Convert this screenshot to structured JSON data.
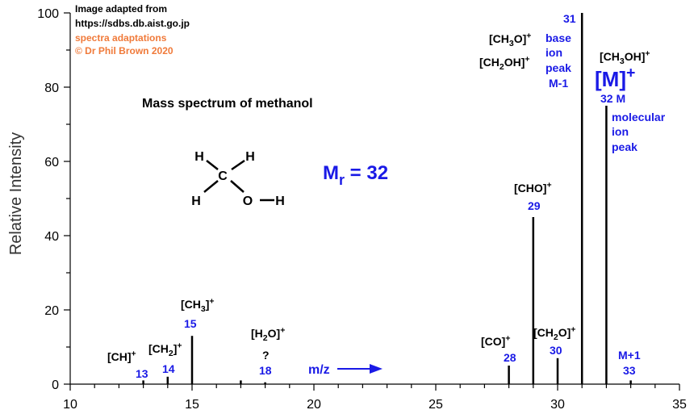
{
  "chart_data": {
    "type": "bar",
    "y_label": "Relative Intensity",
    "x": [
      13,
      14,
      15,
      17,
      18,
      28,
      29,
      30,
      31,
      32,
      33
    ],
    "values": [
      1,
      2,
      13,
      1,
      0.5,
      5,
      45,
      7,
      100,
      75,
      1
    ],
    "color": "#000000",
    "xlim": [
      10,
      35
    ],
    "xticks": [
      10,
      15,
      20,
      25,
      30,
      35
    ],
    "xminorticks": [
      11,
      12,
      13,
      14,
      16,
      17,
      18,
      19,
      21,
      22,
      23,
      24,
      26,
      27,
      28,
      29,
      31,
      32,
      33,
      34
    ],
    "ylim": [
      0,
      100
    ],
    "yticks": [
      0,
      20,
      40,
      60,
      80,
      100
    ],
    "yminorticks": [
      10,
      30,
      50,
      70,
      90
    ],
    "structure_labels": [
      "H",
      "H",
      "C",
      "H",
      "O",
      "H"
    ],
    "annotations": [
      {
        "color": "#000000",
        "runs": [
          {
            "text": "Image adapted from"
          }
        ]
      },
      {
        "color": "#000000",
        "runs": [
          {
            "text": "https://sdbs.db.aist.go.jp"
          }
        ]
      },
      {
        "color": "#f07a3a",
        "runs": [
          {
            "text": "spectra adaptations"
          }
        ]
      },
      {
        "color": "#f07a3a",
        "runs": [
          {
            "text": "© Dr Phil Brown 2020"
          }
        ]
      },
      {
        "color": "#000000",
        "runs": [
          {
            "text": "Mass spectrum of methanol"
          }
        ]
      },
      {
        "color": "#1a1ae6",
        "runs": [
          {
            "text": "M"
          },
          {
            "text": "r",
            "shift": "sub"
          },
          {
            "text": " = 32"
          }
        ]
      },
      {
        "color": "#000000",
        "runs": [
          {
            "text": "[CH]"
          },
          {
            "text": "+",
            "shift": "sup"
          }
        ]
      },
      {
        "color": "#1a1ae6",
        "runs": [
          {
            "text": "13"
          }
        ]
      },
      {
        "color": "#000000",
        "runs": [
          {
            "text": "[CH"
          },
          {
            "text": "2",
            "shift": "sub"
          },
          {
            "text": "]"
          },
          {
            "text": "+",
            "shift": "sup"
          }
        ]
      },
      {
        "color": "#1a1ae6",
        "runs": [
          {
            "text": "14"
          }
        ]
      },
      {
        "color": "#000000",
        "runs": [
          {
            "text": "[CH"
          },
          {
            "text": "3",
            "shift": "sub"
          },
          {
            "text": "]"
          },
          {
            "text": "+",
            "shift": "sup"
          }
        ]
      },
      {
        "color": "#1a1ae6",
        "runs": [
          {
            "text": "15"
          }
        ]
      },
      {
        "color": "#000000",
        "runs": [
          {
            "text": "[H"
          },
          {
            "text": "2",
            "shift": "sub"
          },
          {
            "text": "O]"
          },
          {
            "text": "+",
            "shift": "sup"
          }
        ]
      },
      {
        "color": "#000000",
        "runs": [
          {
            "text": "?"
          }
        ]
      },
      {
        "color": "#1a1ae6",
        "runs": [
          {
            "text": "18"
          }
        ]
      },
      {
        "color": "#1a1ae6",
        "runs": [
          {
            "text": "m/z"
          }
        ]
      },
      {
        "color": "#000000",
        "runs": [
          {
            "text": "[CO]"
          },
          {
            "text": "+",
            "shift": "sup"
          }
        ]
      },
      {
        "color": "#1a1ae6",
        "runs": [
          {
            "text": "28"
          }
        ]
      },
      {
        "color": "#000000",
        "runs": [
          {
            "text": "[CH"
          },
          {
            "text": "2",
            "shift": "sub"
          },
          {
            "text": "O]"
          },
          {
            "text": "+",
            "shift": "sup"
          }
        ]
      },
      {
        "color": "#1a1ae6",
        "runs": [
          {
            "text": "30"
          }
        ]
      },
      {
        "color": "#000000",
        "runs": [
          {
            "text": "[CHO]"
          },
          {
            "text": "+",
            "shift": "sup"
          }
        ]
      },
      {
        "color": "#1a1ae6",
        "runs": [
          {
            "text": "29"
          }
        ]
      },
      {
        "color": "#000000",
        "runs": [
          {
            "text": "[CH"
          },
          {
            "text": "3",
            "shift": "sub"
          },
          {
            "text": "O]"
          },
          {
            "text": "+",
            "shift": "sup"
          }
        ]
      },
      {
        "color": "#000000",
        "runs": [
          {
            "text": "[CH"
          },
          {
            "text": "2",
            "shift": "sub"
          },
          {
            "text": "OH]"
          },
          {
            "text": "+",
            "shift": "sup"
          }
        ]
      },
      {
        "color": "#1a1ae6",
        "runs": [
          {
            "text": "31"
          }
        ]
      },
      {
        "color": "#1a1ae6",
        "runs": [
          {
            "text": "base"
          }
        ]
      },
      {
        "color": "#1a1ae6",
        "runs": [
          {
            "text": "ion"
          }
        ]
      },
      {
        "color": "#1a1ae6",
        "runs": [
          {
            "text": "peak"
          }
        ]
      },
      {
        "color": "#1a1ae6",
        "runs": [
          {
            "text": "M-1"
          }
        ]
      },
      {
        "color": "#000000",
        "runs": [
          {
            "text": "[CH"
          },
          {
            "text": "3",
            "shift": "sub"
          },
          {
            "text": "OH]"
          },
          {
            "text": "+",
            "shift": "sup"
          }
        ]
      },
      {
        "color": "#1a1ae6",
        "runs": [
          {
            "text": "[M]"
          },
          {
            "text": "+",
            "shift": "sup"
          }
        ]
      },
      {
        "color": "#1a1ae6",
        "runs": [
          {
            "text": "32  M"
          }
        ]
      },
      {
        "color": "#1a1ae6",
        "runs": [
          {
            "text": "molecular"
          }
        ]
      },
      {
        "color": "#1a1ae6",
        "runs": [
          {
            "text": "ion"
          }
        ]
      },
      {
        "color": "#1a1ae6",
        "runs": [
          {
            "text": "peak"
          }
        ]
      },
      {
        "color": "#1a1ae6",
        "runs": [
          {
            "text": "M+1"
          }
        ]
      },
      {
        "color": "#1a1ae6",
        "runs": [
          {
            "text": "33"
          }
        ]
      }
    ]
  }
}
